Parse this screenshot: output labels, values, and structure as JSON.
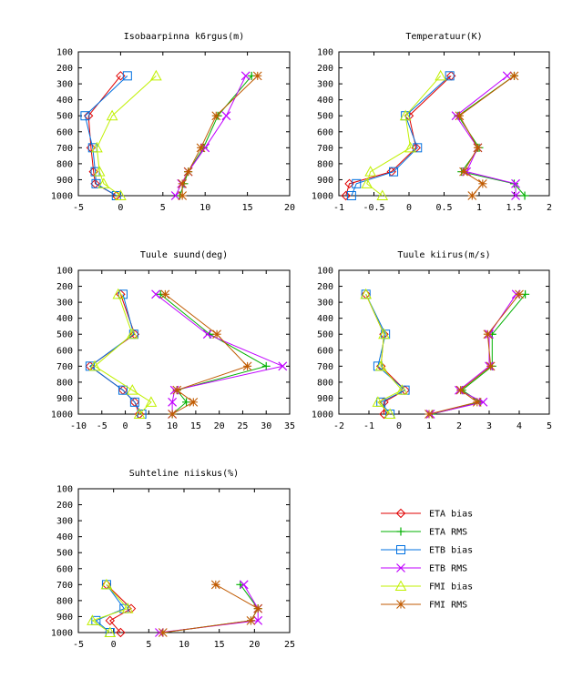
{
  "legend": [
    {
      "name": "ETA bias",
      "color": "#e00000",
      "marker": "diamond"
    },
    {
      "name": "ETA RMS",
      "color": "#00b000",
      "marker": "plus"
    },
    {
      "name": "ETB bias",
      "color": "#0070e0",
      "marker": "square"
    },
    {
      "name": "ETB RMS",
      "color": "#c000ff",
      "marker": "cross"
    },
    {
      "name": "FMI bias",
      "color": "#c0f000",
      "marker": "triangle"
    },
    {
      "name": "FMI RMS",
      "color": "#c05a00",
      "marker": "star"
    }
  ],
  "chart_data": [
    {
      "type": "line",
      "title": "Isobaarpinna k6rgus(m)",
      "xlim": [
        -5,
        20
      ],
      "xticks": [
        -5,
        0,
        5,
        10,
        15,
        20
      ],
      "ylim": [
        100,
        1000
      ],
      "yticks": [
        100,
        200,
        300,
        400,
        500,
        600,
        700,
        800,
        900,
        1000
      ],
      "y_reversed": true,
      "series": [
        {
          "name": "ETA bias",
          "x": [
            0,
            -3.8,
            -3.5,
            -3.2,
            -3.0,
            -0.5
          ],
          "y": [
            250,
            500,
            700,
            850,
            925,
            1000
          ]
        },
        {
          "name": "ETA RMS",
          "x": [
            15.5,
            11.5,
            9.8,
            8.0,
            7.5,
            7.0
          ],
          "y": [
            250,
            500,
            700,
            850,
            925,
            1000
          ]
        },
        {
          "name": "ETB bias",
          "x": [
            0.8,
            -4.2,
            -3.3,
            -3.0,
            -2.9,
            -0.5
          ],
          "y": [
            250,
            500,
            700,
            850,
            925,
            1000
          ]
        },
        {
          "name": "ETB RMS",
          "x": [
            14.8,
            12.5,
            10.0,
            8.0,
            7.2,
            6.5
          ],
          "y": [
            250,
            500,
            700,
            850,
            925,
            1000
          ]
        },
        {
          "name": "FMI bias",
          "x": [
            4.2,
            -1.0,
            -2.8,
            -2.5,
            -2.0,
            0
          ],
          "y": [
            250,
            500,
            700,
            850,
            925,
            1000
          ]
        },
        {
          "name": "FMI RMS",
          "x": [
            16.2,
            11.3,
            9.5,
            8.0,
            7.3,
            7.3
          ],
          "y": [
            250,
            500,
            700,
            850,
            925,
            1000
          ]
        }
      ]
    },
    {
      "type": "line",
      "title": "Temperatuur(K)",
      "xlim": [
        -1,
        2
      ],
      "xticks": [
        -1,
        -0.5,
        0,
        0.5,
        1,
        1.5,
        2
      ],
      "ylim": [
        100,
        1000
      ],
      "yticks": [
        100,
        200,
        300,
        400,
        500,
        600,
        700,
        800,
        900,
        1000
      ],
      "y_reversed": true,
      "series": [
        {
          "name": "ETA bias",
          "x": [
            0.6,
            0,
            0.1,
            -0.25,
            -0.85,
            -0.9
          ],
          "y": [
            250,
            500,
            700,
            850,
            925,
            1000
          ]
        },
        {
          "name": "ETA RMS",
          "x": [
            1.5,
            0.7,
            1.0,
            0.75,
            1.5,
            1.65
          ],
          "y": [
            250,
            500,
            700,
            850,
            925,
            1000
          ]
        },
        {
          "name": "ETB bias",
          "x": [
            0.58,
            -0.05,
            0.12,
            -0.22,
            -0.75,
            -0.82
          ],
          "y": [
            250,
            500,
            700,
            850,
            925,
            1000
          ]
        },
        {
          "name": "ETB RMS",
          "x": [
            1.4,
            0.67,
            0.98,
            0.82,
            1.52,
            1.52
          ],
          "y": [
            250,
            500,
            700,
            850,
            925,
            1000
          ]
        },
        {
          "name": "FMI bias",
          "x": [
            0.45,
            -0.05,
            0.02,
            -0.55,
            -0.6,
            -0.38
          ],
          "y": [
            250,
            500,
            700,
            850,
            925,
            1000
          ]
        },
        {
          "name": "FMI RMS",
          "x": [
            1.5,
            0.72,
            0.98,
            0.78,
            1.05,
            0.9
          ],
          "y": [
            250,
            500,
            700,
            850,
            925,
            1000
          ]
        }
      ]
    },
    {
      "type": "line",
      "title": "Tuule suund(deg)",
      "xlim": [
        -10,
        35
      ],
      "xticks": [
        -10,
        -5,
        0,
        5,
        10,
        15,
        20,
        25,
        30,
        35
      ],
      "ylim": [
        100,
        1000
      ],
      "yticks": [
        100,
        200,
        300,
        400,
        500,
        600,
        700,
        800,
        900,
        1000
      ],
      "y_reversed": true,
      "series": [
        {
          "name": "ETA bias",
          "x": [
            -1.0,
            2.0,
            -7.5,
            -0.5,
            2.0,
            3.0
          ],
          "y": [
            250,
            500,
            700,
            850,
            925,
            1000
          ]
        },
        {
          "name": "ETA RMS",
          "x": [
            7.5,
            18.0,
            30.0,
            11.0,
            13.0,
            10.0
          ],
          "y": [
            250,
            500,
            700,
            850,
            925,
            1000
          ]
        },
        {
          "name": "ETB bias",
          "x": [
            -0.5,
            1.8,
            -7.5,
            -0.5,
            2.0,
            3.5
          ],
          "y": [
            250,
            500,
            700,
            850,
            925,
            1000
          ]
        },
        {
          "name": "ETB RMS",
          "x": [
            6.5,
            17.5,
            33.5,
            10.5,
            10.0,
            10.0
          ],
          "y": [
            250,
            500,
            700,
            850,
            925,
            1000
          ]
        },
        {
          "name": "FMI bias",
          "x": [
            -1.5,
            1.5,
            -6.5,
            1.5,
            5.5,
            3.0
          ],
          "y": [
            250,
            500,
            700,
            850,
            925,
            1000
          ]
        },
        {
          "name": "FMI RMS",
          "x": [
            8.5,
            19.5,
            26.0,
            11.0,
            14.5,
            10.0
          ],
          "y": [
            250,
            500,
            700,
            850,
            925,
            1000
          ]
        }
      ]
    },
    {
      "type": "line",
      "title": "Tuule kiirus(m/s)",
      "xlim": [
        -2,
        5
      ],
      "xticks": [
        -2,
        -1,
        0,
        1,
        2,
        3,
        4,
        5
      ],
      "ylim": [
        100,
        1000
      ],
      "yticks": [
        100,
        200,
        300,
        400,
        500,
        600,
        700,
        800,
        900,
        1000
      ],
      "y_reversed": true,
      "series": [
        {
          "name": "ETA bias",
          "x": [
            -1.1,
            -0.5,
            -0.6,
            0.2,
            -0.5,
            -0.5
          ],
          "y": [
            250,
            500,
            700,
            850,
            925,
            1000
          ]
        },
        {
          "name": "ETA RMS",
          "x": [
            4.2,
            3.1,
            3.1,
            2.1,
            2.7,
            1.1
          ],
          "y": [
            250,
            500,
            700,
            850,
            925,
            1000
          ]
        },
        {
          "name": "ETB bias",
          "x": [
            -1.1,
            -0.45,
            -0.7,
            0.2,
            -0.6,
            -0.3
          ],
          "y": [
            250,
            500,
            700,
            850,
            925,
            1000
          ]
        },
        {
          "name": "ETB RMS",
          "x": [
            3.9,
            3.0,
            3.0,
            2.0,
            2.8,
            1.05
          ],
          "y": [
            250,
            500,
            700,
            850,
            925,
            1000
          ]
        },
        {
          "name": "FMI bias",
          "x": [
            -1.1,
            -0.5,
            -0.6,
            0.1,
            -0.7,
            -0.3
          ],
          "y": [
            250,
            500,
            700,
            850,
            925,
            1000
          ]
        },
        {
          "name": "FMI RMS",
          "x": [
            4.0,
            2.95,
            3.05,
            2.05,
            2.6,
            1.0
          ],
          "y": [
            250,
            500,
            700,
            850,
            925,
            1000
          ]
        }
      ]
    },
    {
      "type": "line",
      "title": "Suhteline niiskus(%)",
      "xlim": [
        -5,
        25
      ],
      "xticks": [
        -5,
        0,
        5,
        10,
        15,
        20,
        25
      ],
      "ylim": [
        100,
        1000
      ],
      "yticks": [
        100,
        200,
        300,
        400,
        500,
        600,
        700,
        800,
        900,
        1000
      ],
      "y_reversed": true,
      "series": [
        {
          "name": "ETA bias",
          "x": [
            -1.0,
            2.5,
            -0.5,
            1.0
          ],
          "y": [
            700,
            850,
            925,
            1000
          ]
        },
        {
          "name": "ETA RMS",
          "x": [
            18.0,
            20.5,
            19.5,
            7.0
          ],
          "y": [
            700,
            850,
            925,
            1000
          ]
        },
        {
          "name": "ETB bias",
          "x": [
            -1.0,
            1.5,
            -2.5,
            -0.5
          ],
          "y": [
            700,
            850,
            925,
            1000
          ]
        },
        {
          "name": "ETB RMS",
          "x": [
            18.5,
            20.5,
            20.5,
            6.5
          ],
          "y": [
            700,
            850,
            925,
            1000
          ]
        },
        {
          "name": "FMI bias",
          "x": [
            -1.0,
            2.0,
            -3.0,
            -0.5
          ],
          "y": [
            700,
            850,
            925,
            1000
          ]
        },
        {
          "name": "FMI RMS",
          "x": [
            14.5,
            20.5,
            19.5,
            7.0
          ],
          "y": [
            700,
            850,
            925,
            1000
          ]
        }
      ]
    }
  ]
}
